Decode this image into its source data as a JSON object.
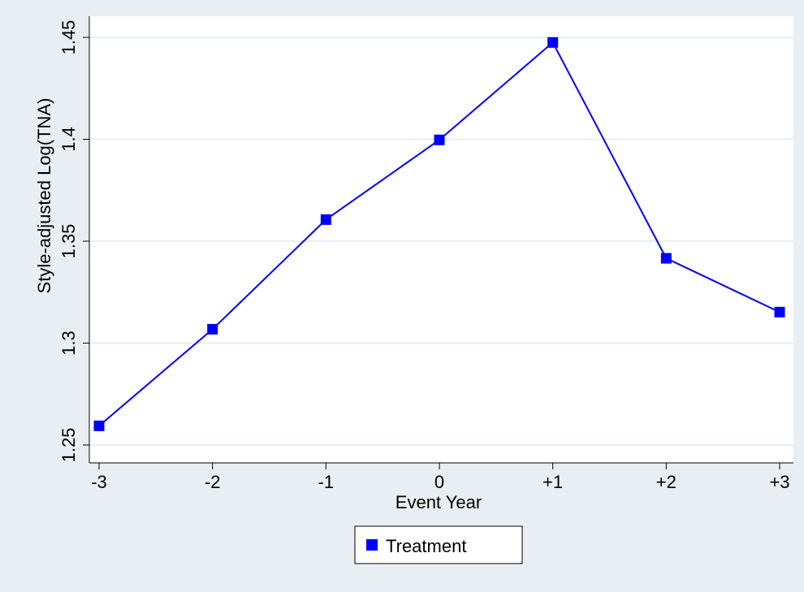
{
  "chart_data": {
    "type": "line",
    "title": "",
    "xlabel": "Event Year",
    "ylabel": "Style-adjusted Log(TNA)",
    "categories": [
      "-3",
      "-2",
      "-1",
      "0",
      "+1",
      "+2",
      "+3"
    ],
    "yticks": [
      "1.25",
      "1.3",
      "1.35",
      "1.4",
      "1.45"
    ],
    "ylim": [
      1.25,
      1.45
    ],
    "grid": true,
    "legend_position": "bottom-center",
    "series": [
      {
        "name": "Treatment",
        "values": [
          1.2594,
          1.3068,
          1.3606,
          1.3997,
          1.4475,
          1.3416,
          1.3152
        ],
        "color": "#0000ff",
        "marker": "square"
      }
    ]
  },
  "colors": {
    "background": "#e8eef2",
    "plot_area": "#ffffff",
    "grid": "#e8eef2",
    "axis": "#000000"
  }
}
